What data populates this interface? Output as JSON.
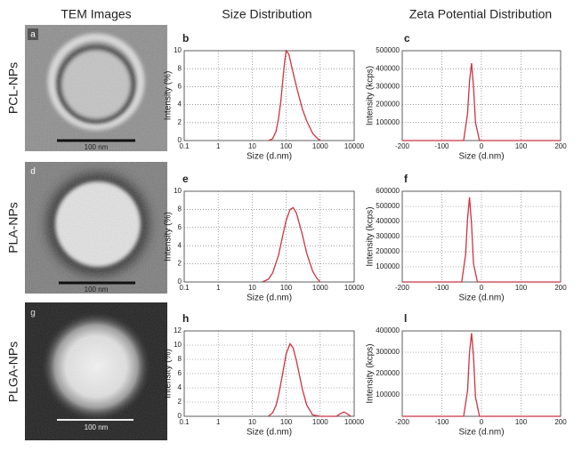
{
  "headers": [
    "TEM Images",
    "Size Distribution",
    "Zeta Potential Distribution"
  ],
  "rows": [
    {
      "label": "PCL-NPs",
      "panel": "a",
      "scale_bar": "100 nm"
    },
    {
      "label": "PLA-NPs",
      "panel": "d",
      "scale_bar": "100 nm"
    },
    {
      "label": "PLGA-NPs",
      "panel": "g",
      "scale_bar": "100 nm"
    }
  ],
  "chart_data": [
    {
      "type": "line",
      "panel": "b",
      "xlabel": "Size (d.nm)",
      "ylabel": "Intensity (%)",
      "xscale": "log",
      "grid": true,
      "color": "#cc3344",
      "x": [
        30,
        40,
        50,
        60,
        70,
        80,
        90,
        100,
        120,
        150,
        200,
        300,
        400,
        600,
        800,
        1000
      ],
      "values": [
        0,
        0.2,
        1,
        2.5,
        4.5,
        6.8,
        8.8,
        10,
        9.6,
        8,
        6,
        3.5,
        2.2,
        0.8,
        0.3,
        0
      ],
      "xlim": [
        0.1,
        10000
      ],
      "xticks": [
        0.1,
        1,
        10,
        100,
        1000,
        10000
      ],
      "ylim": [
        0,
        10
      ],
      "yticks": [
        0,
        2,
        4,
        6,
        8,
        10
      ]
    },
    {
      "type": "line",
      "panel": "c",
      "xlabel": "Size (d.nm)",
      "ylabel": "Intensity (kcps)",
      "xscale": "linear",
      "grid": true,
      "color": "#cc3344",
      "x": [
        -200,
        -45,
        -35,
        -30,
        -25,
        -20,
        -15,
        -5,
        200
      ],
      "values": [
        0,
        0,
        150000,
        330000,
        430000,
        300000,
        100000,
        0,
        0
      ],
      "xlim": [
        -200,
        200
      ],
      "xticks": [
        -200,
        -100,
        0,
        100,
        200
      ],
      "ylim": [
        0,
        500000
      ],
      "yticks": [
        100000,
        200000,
        300000,
        400000,
        500000
      ]
    },
    {
      "type": "line",
      "panel": "e",
      "xlabel": "Size (d.nm)",
      "ylabel": "Intensity (%)",
      "xscale": "log",
      "grid": true,
      "color": "#cc3344",
      "x": [
        20,
        30,
        40,
        60,
        80,
        100,
        130,
        160,
        200,
        300,
        400,
        600,
        800,
        1000
      ],
      "values": [
        0,
        0.3,
        1,
        3,
        5.2,
        6.8,
        8,
        8.2,
        7.6,
        5.2,
        3.2,
        1.2,
        0.4,
        0
      ],
      "xlim": [
        0.1,
        10000
      ],
      "xticks": [
        0.1,
        1,
        10,
        100,
        1000,
        10000
      ],
      "ylim": [
        0,
        10
      ],
      "yticks": [
        0,
        2,
        4,
        6,
        8,
        10
      ]
    },
    {
      "type": "line",
      "panel": "f",
      "xlabel": "Size (d.nm)",
      "ylabel": "Intensity (kcps)",
      "xscale": "linear",
      "grid": true,
      "color": "#cc3344",
      "x": [
        -200,
        -50,
        -40,
        -35,
        -30,
        -25,
        -20,
        -10,
        200
      ],
      "values": [
        0,
        0,
        180000,
        420000,
        560000,
        380000,
        120000,
        0,
        0
      ],
      "xlim": [
        -200,
        200
      ],
      "xticks": [
        -200,
        -100,
        0,
        100,
        200
      ],
      "ylim": [
        0,
        600000
      ],
      "yticks": [
        100000,
        200000,
        300000,
        400000,
        500000,
        600000
      ]
    },
    {
      "type": "line",
      "panel": "h",
      "xlabel": "Size (d.nm)",
      "ylabel": "Intensity (%)",
      "xscale": "log",
      "grid": true,
      "color": "#cc3344",
      "x": [
        30,
        40,
        50,
        60,
        80,
        100,
        130,
        160,
        200,
        300,
        400,
        600,
        1000,
        3000,
        4000,
        5000,
        6000,
        8000
      ],
      "values": [
        0,
        0.5,
        1.5,
        3,
        6.2,
        8.8,
        10.2,
        9.6,
        7.8,
        3.8,
        1.6,
        0.2,
        0,
        0,
        0.4,
        0.6,
        0.4,
        0
      ],
      "xlim": [
        0.1,
        10000
      ],
      "xticks": [
        0.1,
        1,
        10,
        100,
        1000,
        10000
      ],
      "ylim": [
        0,
        12
      ],
      "yticks": [
        0,
        2,
        4,
        6,
        8,
        10,
        12
      ]
    },
    {
      "type": "line",
      "panel": "l",
      "xlabel": "Size (d.nm)",
      "ylabel": "Intensity (kcps)",
      "xscale": "linear",
      "grid": true,
      "color": "#cc3344",
      "x": [
        -200,
        -45,
        -35,
        -30,
        -25,
        -20,
        -15,
        -5,
        200
      ],
      "values": [
        0,
        0,
        120000,
        300000,
        390000,
        280000,
        90000,
        0,
        0
      ],
      "xlim": [
        -200,
        200
      ],
      "xticks": [
        -200,
        -100,
        0,
        100,
        200
      ],
      "ylim": [
        0,
        400000
      ],
      "yticks": [
        100000,
        200000,
        300000,
        400000
      ]
    }
  ]
}
